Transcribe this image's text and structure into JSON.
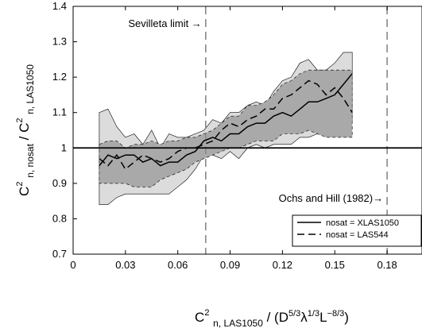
{
  "chart_data": {
    "type": "line",
    "x_ticks": [
      "0",
      "0.03",
      "0.06",
      "0.09",
      "0.12",
      "0.15",
      "0.18"
    ],
    "y_ticks": [
      "0.7",
      "0.8",
      "0.9",
      "1",
      "1.1",
      "1.2",
      "1.3",
      "1.4"
    ],
    "xlim": [
      0,
      0.2
    ],
    "ylim": [
      0.7,
      1.4
    ],
    "xlabel": {
      "base": "C",
      "sup": "2",
      "sub": "n, LAS1050",
      "rest": " / (D",
      "sup2": "5/3",
      "mid": "λ",
      "sup3": "1/3",
      "mid2": "L",
      "sup4": "−8/3",
      "end": ")"
    },
    "ylabel": {
      "num_base": "C",
      "num_sup": "2",
      "num_sub": "n, nosat",
      "slash": " / ",
      "den_base": "C",
      "den_sup": "2",
      "den_sub": "n, LAS1050"
    },
    "reference_line": 1.0,
    "vlines": [
      {
        "x": 0.076,
        "label": "Sevilleta limit →"
      },
      {
        "x": 0.18,
        "label": "Ochs and Hill (1982)→"
      }
    ],
    "x": [
      0.015,
      0.02,
      0.025,
      0.03,
      0.035,
      0.04,
      0.045,
      0.05,
      0.055,
      0.06,
      0.065,
      0.07,
      0.075,
      0.08,
      0.085,
      0.09,
      0.095,
      0.1,
      0.105,
      0.11,
      0.115,
      0.12,
      0.125,
      0.13,
      0.135,
      0.14,
      0.145,
      0.15,
      0.155,
      0.16
    ],
    "series": [
      {
        "name": "nosat = XLAS1050",
        "style": "solid",
        "values": [
          0.95,
          0.98,
          0.97,
          0.98,
          0.98,
          0.96,
          0.97,
          0.95,
          0.96,
          0.96,
          0.98,
          0.99,
          1.02,
          1.03,
          1.02,
          1.04,
          1.04,
          1.06,
          1.07,
          1.07,
          1.09,
          1.1,
          1.09,
          1.11,
          1.13,
          1.13,
          1.14,
          1.15,
          1.18,
          1.21
        ],
        "band_outer": {
          "upper": [
            1.1,
            1.11,
            1.06,
            1.03,
            1.04,
            1.01,
            1.05,
            1.0,
            1.04,
            1.03,
            1.03,
            1.04,
            1.05,
            1.08,
            1.07,
            1.1,
            1.1,
            1.12,
            1.13,
            1.12,
            1.16,
            1.19,
            1.2,
            1.24,
            1.25,
            1.22,
            1.22,
            1.24,
            1.27,
            1.27
          ],
          "lower": [
            0.84,
            0.84,
            0.86,
            0.87,
            0.87,
            0.87,
            0.87,
            0.87,
            0.87,
            0.89,
            0.91,
            0.94,
            0.98,
            0.98,
            0.97,
            0.99,
            0.97,
            1.0,
            1.01,
            1.0,
            1.01,
            1.01,
            1.01,
            1.03,
            1.03,
            1.04,
            1.05,
            1.05,
            1.06,
            1.07
          ]
        }
      },
      {
        "name": "nosat = LAS544",
        "style": "dashed",
        "values": [
          0.97,
          0.95,
          0.98,
          0.94,
          0.96,
          0.98,
          0.97,
          0.96,
          0.97,
          0.99,
          1.0,
          1.0,
          1.01,
          1.02,
          1.05,
          1.07,
          1.06,
          1.08,
          1.09,
          1.11,
          1.11,
          1.14,
          1.15,
          1.17,
          1.19,
          1.18,
          1.15,
          1.17,
          1.14,
          1.1
        ],
        "band_inner": {
          "upper": [
            1.01,
            1.02,
            1.02,
            1.0,
            1.01,
            1.01,
            1.02,
            1.01,
            1.02,
            1.02,
            1.03,
            1.03,
            1.04,
            1.05,
            1.07,
            1.09,
            1.09,
            1.12,
            1.12,
            1.13,
            1.15,
            1.18,
            1.19,
            1.21,
            1.22,
            1.22,
            1.22,
            1.22,
            1.22,
            1.22
          ],
          "lower": [
            0.9,
            0.9,
            0.9,
            0.9,
            0.89,
            0.89,
            0.89,
            0.91,
            0.92,
            0.93,
            0.94,
            0.96,
            0.97,
            0.98,
            0.99,
            1.0,
            1.0,
            1.01,
            1.02,
            1.02,
            1.02,
            1.04,
            1.04,
            1.04,
            1.05,
            1.04,
            1.03,
            1.03,
            1.03,
            1.03
          ]
        }
      }
    ],
    "legend_position": "bottom-right",
    "grid": false
  }
}
